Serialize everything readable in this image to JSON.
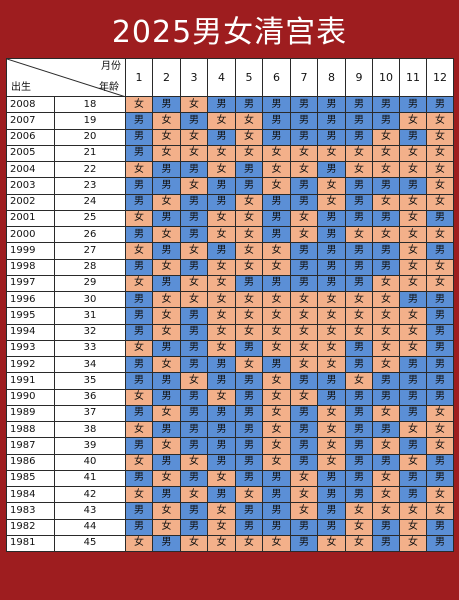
{
  "title": "2025男女清宫表",
  "header": {
    "birth_label": "出生",
    "month_label": "月份",
    "age_label": "年龄",
    "months": [
      "1",
      "2",
      "3",
      "4",
      "5",
      "6",
      "7",
      "8",
      "9",
      "10",
      "11",
      "12"
    ]
  },
  "labels": {
    "boy": "男",
    "girl": "女"
  },
  "colors": {
    "boy": "#5b8fd6",
    "girl": "#f3b08a",
    "background": "#9e1d1f"
  },
  "rows": [
    {
      "year": "2008",
      "age": "18",
      "cells": [
        "女",
        "男",
        "女",
        "男",
        "男",
        "男",
        "男",
        "男",
        "男",
        "男",
        "男",
        "男"
      ]
    },
    {
      "year": "2007",
      "age": "19",
      "cells": [
        "男",
        "女",
        "男",
        "女",
        "女",
        "男",
        "男",
        "男",
        "男",
        "男",
        "女",
        "女"
      ]
    },
    {
      "year": "2006",
      "age": "20",
      "cells": [
        "男",
        "女",
        "女",
        "男",
        "女",
        "男",
        "男",
        "男",
        "男",
        "女",
        "男",
        "女"
      ]
    },
    {
      "year": "2005",
      "age": "21",
      "cells": [
        "男",
        "女",
        "女",
        "女",
        "女",
        "女",
        "女",
        "女",
        "女",
        "女",
        "女",
        "女"
      ]
    },
    {
      "year": "2004",
      "age": "22",
      "cells": [
        "女",
        "男",
        "男",
        "女",
        "男",
        "女",
        "女",
        "男",
        "女",
        "女",
        "女",
        "女"
      ]
    },
    {
      "year": "2003",
      "age": "23",
      "cells": [
        "男",
        "男",
        "女",
        "男",
        "男",
        "女",
        "男",
        "女",
        "男",
        "男",
        "男",
        "女"
      ]
    },
    {
      "year": "2002",
      "age": "24",
      "cells": [
        "男",
        "女",
        "男",
        "男",
        "女",
        "男",
        "男",
        "女",
        "男",
        "女",
        "女",
        "女"
      ]
    },
    {
      "year": "2001",
      "age": "25",
      "cells": [
        "女",
        "男",
        "男",
        "女",
        "女",
        "男",
        "女",
        "男",
        "男",
        "男",
        "女",
        "男"
      ]
    },
    {
      "year": "2000",
      "age": "26",
      "cells": [
        "男",
        "女",
        "男",
        "女",
        "女",
        "男",
        "女",
        "男",
        "女",
        "女",
        "女",
        "女"
      ]
    },
    {
      "year": "1999",
      "age": "27",
      "cells": [
        "女",
        "男",
        "女",
        "男",
        "女",
        "女",
        "男",
        "男",
        "男",
        "男",
        "女",
        "男"
      ]
    },
    {
      "year": "1998",
      "age": "28",
      "cells": [
        "男",
        "女",
        "男",
        "女",
        "女",
        "女",
        "男",
        "男",
        "男",
        "男",
        "女",
        "女"
      ]
    },
    {
      "year": "1997",
      "age": "29",
      "cells": [
        "女",
        "男",
        "女",
        "女",
        "男",
        "男",
        "男",
        "男",
        "男",
        "女",
        "女",
        "女"
      ]
    },
    {
      "year": "1996",
      "age": "30",
      "cells": [
        "男",
        "女",
        "女",
        "女",
        "女",
        "女",
        "女",
        "女",
        "女",
        "女",
        "男",
        "男"
      ]
    },
    {
      "year": "1995",
      "age": "31",
      "cells": [
        "男",
        "女",
        "男",
        "女",
        "女",
        "女",
        "女",
        "女",
        "女",
        "女",
        "女",
        "男"
      ]
    },
    {
      "year": "1994",
      "age": "32",
      "cells": [
        "男",
        "女",
        "男",
        "女",
        "女",
        "女",
        "女",
        "女",
        "女",
        "女",
        "女",
        "男"
      ]
    },
    {
      "year": "1993",
      "age": "33",
      "cells": [
        "女",
        "男",
        "男",
        "女",
        "男",
        "女",
        "女",
        "女",
        "男",
        "女",
        "女",
        "男"
      ]
    },
    {
      "year": "1992",
      "age": "34",
      "cells": [
        "男",
        "女",
        "男",
        "男",
        "女",
        "男",
        "女",
        "女",
        "男",
        "女",
        "男",
        "男"
      ]
    },
    {
      "year": "1991",
      "age": "35",
      "cells": [
        "男",
        "男",
        "女",
        "男",
        "男",
        "女",
        "男",
        "男",
        "女",
        "男",
        "男",
        "男"
      ]
    },
    {
      "year": "1990",
      "age": "36",
      "cells": [
        "女",
        "男",
        "男",
        "女",
        "男",
        "女",
        "女",
        "男",
        "男",
        "男",
        "男",
        "男"
      ]
    },
    {
      "year": "1989",
      "age": "37",
      "cells": [
        "男",
        "女",
        "男",
        "男",
        "男",
        "女",
        "男",
        "女",
        "男",
        "女",
        "男",
        "女"
      ]
    },
    {
      "year": "1988",
      "age": "38",
      "cells": [
        "女",
        "男",
        "男",
        "男",
        "男",
        "女",
        "男",
        "女",
        "男",
        "男",
        "女",
        "女"
      ]
    },
    {
      "year": "1987",
      "age": "39",
      "cells": [
        "男",
        "女",
        "男",
        "男",
        "男",
        "女",
        "男",
        "女",
        "男",
        "女",
        "男",
        "女"
      ]
    },
    {
      "year": "1986",
      "age": "40",
      "cells": [
        "女",
        "男",
        "女",
        "男",
        "男",
        "女",
        "男",
        "女",
        "男",
        "男",
        "女",
        "男"
      ]
    },
    {
      "year": "1985",
      "age": "41",
      "cells": [
        "男",
        "女",
        "男",
        "女",
        "男",
        "男",
        "女",
        "男",
        "男",
        "女",
        "男",
        "男"
      ]
    },
    {
      "year": "1984",
      "age": "42",
      "cells": [
        "女",
        "男",
        "女",
        "男",
        "女",
        "男",
        "女",
        "男",
        "男",
        "女",
        "男",
        "女"
      ]
    },
    {
      "year": "1983",
      "age": "43",
      "cells": [
        "男",
        "女",
        "男",
        "女",
        "男",
        "男",
        "女",
        "男",
        "女",
        "女",
        "女",
        "女"
      ]
    },
    {
      "year": "1982",
      "age": "44",
      "cells": [
        "男",
        "女",
        "男",
        "女",
        "男",
        "男",
        "男",
        "男",
        "女",
        "男",
        "女",
        "男"
      ]
    },
    {
      "year": "1981",
      "age": "45",
      "cells": [
        "女",
        "男",
        "女",
        "女",
        "女",
        "女",
        "男",
        "女",
        "女",
        "男",
        "女",
        "男"
      ]
    }
  ]
}
